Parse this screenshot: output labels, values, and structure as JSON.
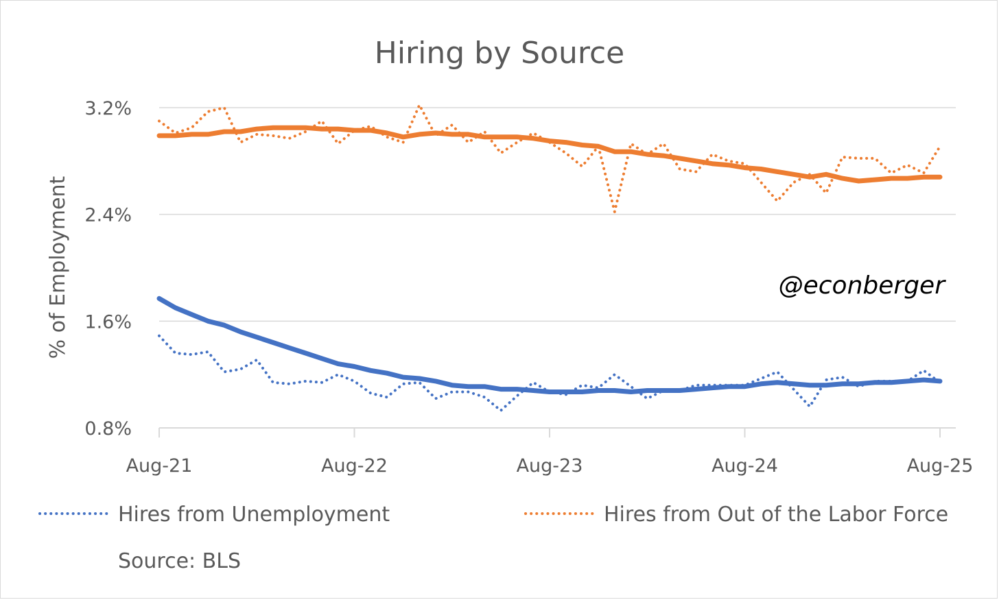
{
  "chart_data": {
    "type": "line",
    "title": "Hiring by Source",
    "xlabel": "",
    "ylabel": "% of Employment",
    "ylim": [
      0.8,
      3.2
    ],
    "yticks": [
      "0.8%",
      "1.6%",
      "2.4%",
      "3.2%"
    ],
    "ytick_values": [
      0.8,
      1.6,
      2.4,
      3.2
    ],
    "xticks": [
      "Aug-21",
      "Aug-22",
      "Aug-23",
      "Aug-24",
      "Aug-25"
    ],
    "xtick_index": [
      0,
      12,
      24,
      36,
      48
    ],
    "grid": true,
    "legend_position": "bottom",
    "annotation": "@econberger",
    "source": "Source: BLS",
    "x": [
      "Aug-21",
      "Sep-21",
      "Oct-21",
      "Nov-21",
      "Dec-21",
      "Jan-22",
      "Feb-22",
      "Mar-22",
      "Apr-22",
      "May-22",
      "Jun-22",
      "Jul-22",
      "Aug-22",
      "Sep-22",
      "Oct-22",
      "Nov-22",
      "Dec-22",
      "Jan-23",
      "Feb-23",
      "Mar-23",
      "Apr-23",
      "May-23",
      "Jun-23",
      "Jul-23",
      "Aug-23",
      "Sep-23",
      "Oct-23",
      "Nov-23",
      "Dec-23",
      "Jan-24",
      "Feb-24",
      "Mar-24",
      "Apr-24",
      "May-24",
      "Jun-24",
      "Jul-24",
      "Aug-24",
      "Sep-24",
      "Oct-24",
      "Nov-24",
      "Dec-24",
      "Jan-25",
      "Feb-25",
      "Mar-25",
      "Apr-25",
      "May-25",
      "Jun-25",
      "Jul-25",
      "Aug-25"
    ],
    "series": [
      {
        "name": "Hires from Unemployment",
        "color": "#4472c4",
        "style": "dotted",
        "values": [
          1.49,
          1.36,
          1.35,
          1.37,
          1.22,
          1.24,
          1.31,
          1.14,
          1.13,
          1.15,
          1.14,
          1.2,
          1.15,
          1.06,
          1.03,
          1.13,
          1.14,
          1.02,
          1.07,
          1.07,
          1.03,
          0.93,
          1.04,
          1.14,
          1.07,
          1.05,
          1.12,
          1.1,
          1.2,
          1.11,
          1.02,
          1.08,
          1.08,
          1.12,
          1.12,
          1.12,
          1.12,
          1.17,
          1.22,
          1.09,
          0.96,
          1.16,
          1.18,
          1.11,
          1.15,
          1.15,
          1.15,
          1.23,
          1.14
        ]
      },
      {
        "name": "Hires from Out of the Labor Force",
        "color": "#ed7d31",
        "style": "dotted",
        "values": [
          3.1,
          3.01,
          3.05,
          3.17,
          3.2,
          2.94,
          3.0,
          2.99,
          2.97,
          3.02,
          3.1,
          2.93,
          3.03,
          3.06,
          2.98,
          2.94,
          3.22,
          2.99,
          3.07,
          2.94,
          3.02,
          2.86,
          2.94,
          3.01,
          2.94,
          2.86,
          2.76,
          2.91,
          2.42,
          2.93,
          2.85,
          2.93,
          2.74,
          2.72,
          2.85,
          2.8,
          2.78,
          2.64,
          2.5,
          2.64,
          2.7,
          2.56,
          2.83,
          2.82,
          2.82,
          2.71,
          2.77,
          2.71,
          2.91
        ]
      },
      {
        "name": "",
        "color": "#4472c4",
        "style": "solid",
        "values": [
          1.77,
          1.7,
          1.65,
          1.6,
          1.57,
          1.52,
          1.48,
          1.44,
          1.4,
          1.36,
          1.32,
          1.28,
          1.26,
          1.23,
          1.21,
          1.18,
          1.17,
          1.15,
          1.12,
          1.11,
          1.11,
          1.09,
          1.09,
          1.08,
          1.07,
          1.07,
          1.07,
          1.08,
          1.08,
          1.07,
          1.08,
          1.08,
          1.08,
          1.09,
          1.1,
          1.11,
          1.11,
          1.13,
          1.14,
          1.13,
          1.12,
          1.12,
          1.13,
          1.13,
          1.14,
          1.14,
          1.15,
          1.16,
          1.15
        ]
      },
      {
        "name": "",
        "color": "#ed7d31",
        "style": "solid",
        "values": [
          2.99,
          2.99,
          3.0,
          3.0,
          3.02,
          3.02,
          3.04,
          3.05,
          3.05,
          3.05,
          3.04,
          3.04,
          3.03,
          3.03,
          3.01,
          2.98,
          3.0,
          3.01,
          3.0,
          3.0,
          2.98,
          2.98,
          2.98,
          2.97,
          2.95,
          2.94,
          2.92,
          2.91,
          2.87,
          2.87,
          2.85,
          2.84,
          2.82,
          2.8,
          2.78,
          2.77,
          2.75,
          2.74,
          2.72,
          2.7,
          2.68,
          2.7,
          2.67,
          2.65,
          2.66,
          2.67,
          2.67,
          2.68,
          2.68
        ]
      }
    ]
  }
}
